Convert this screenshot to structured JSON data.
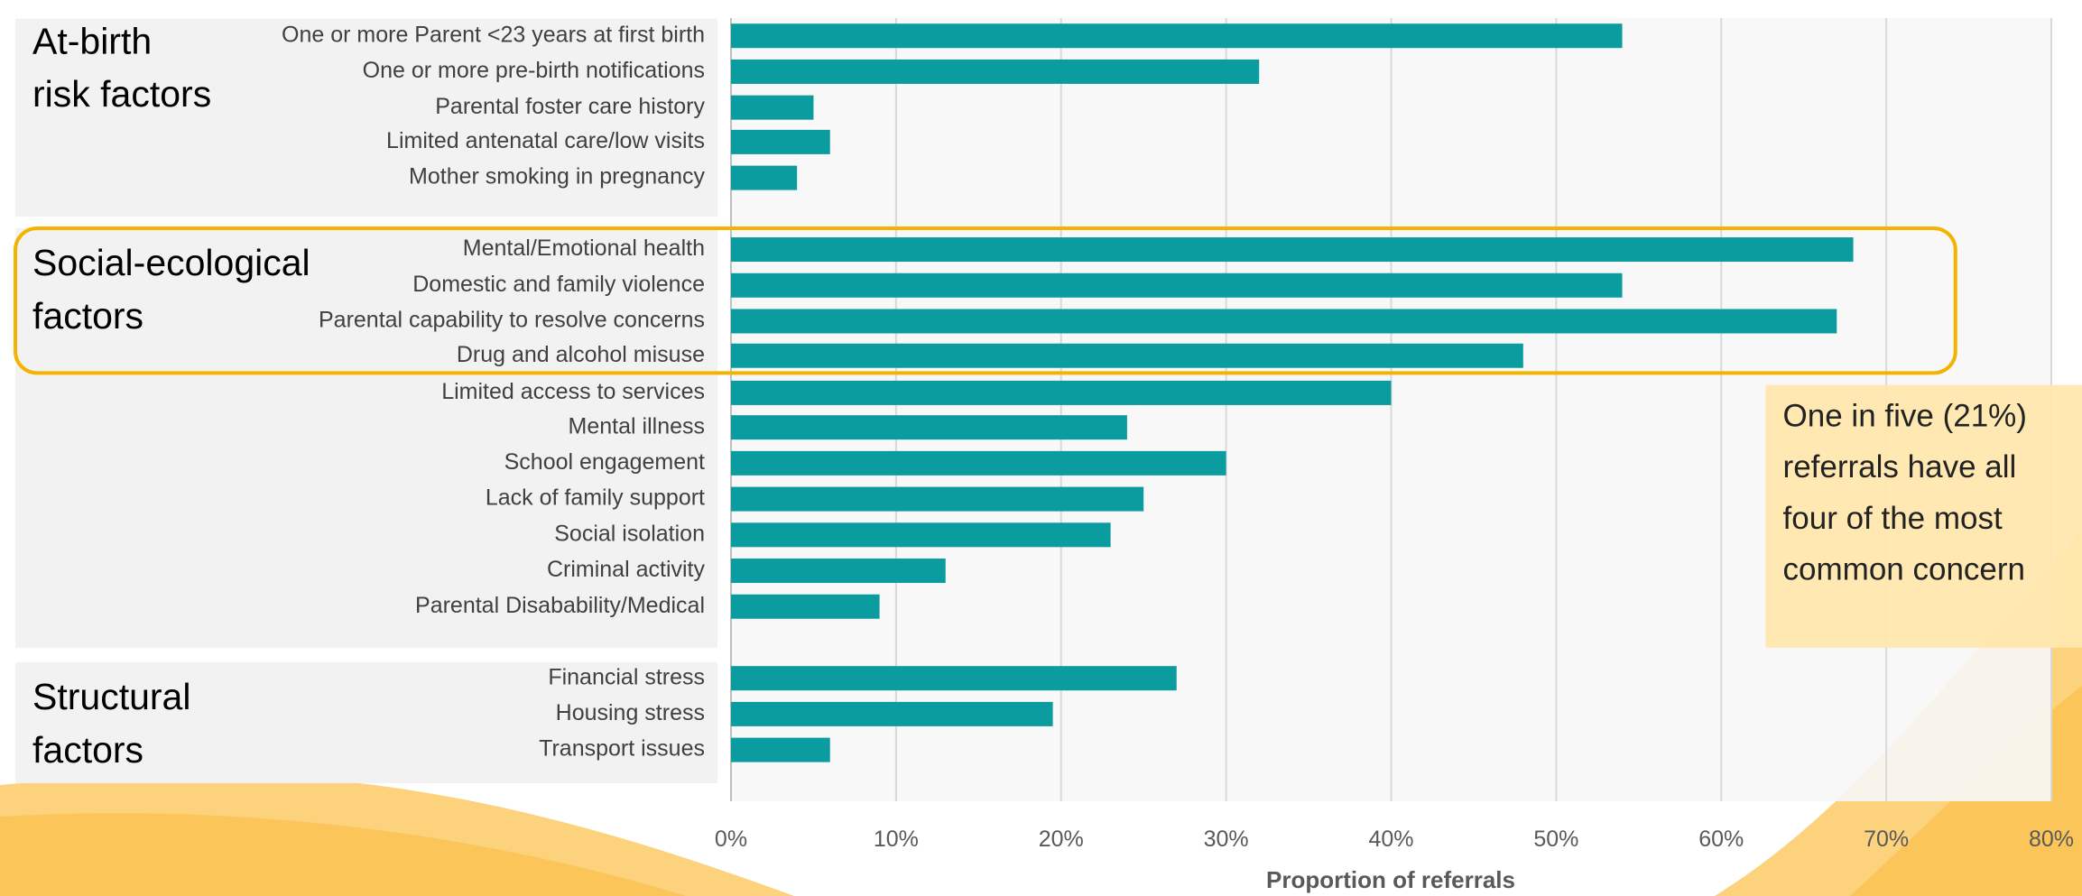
{
  "chart_data": {
    "type": "bar",
    "x_label": "Proportion of referrals",
    "color": "#0a9c9f",
    "xlim": [
      0,
      80
    ],
    "xticks": [
      {
        "value": 0,
        "label": "0%"
      },
      {
        "value": 10,
        "label": "10%"
      },
      {
        "value": 20,
        "label": "20%"
      },
      {
        "value": 30,
        "label": "30%"
      },
      {
        "value": 40,
        "label": "40%"
      },
      {
        "value": 50,
        "label": "50%"
      },
      {
        "value": 60,
        "label": "60%"
      },
      {
        "value": 70,
        "label": "70%"
      },
      {
        "value": 80,
        "label": "80%"
      }
    ],
    "grid": true,
    "groups": [
      {
        "label": [
          "At-birth",
          "risk factors"
        ],
        "categories": [
          "One or more Parent <23 years at first birth",
          "One or more pre-birth notifications",
          "Parental foster care history",
          "Limited antenatal care/low visits",
          "Mother smoking in pregnancy"
        ],
        "values": [
          54,
          32,
          5,
          6,
          4
        ]
      },
      {
        "label": [
          "Social-ecological",
          "factors"
        ],
        "categories": [
          "Mental/Emotional health",
          "Domestic and family violence",
          "Parental capability to resolve concerns",
          "Drug and alcohol misuse",
          "Limited access to services",
          "Mental illness",
          "School engagement",
          "Lack of family support",
          "Social isolation",
          "Criminal activity",
          "Parental Disabability/Medical"
        ],
        "values": [
          68,
          54,
          67,
          48,
          40,
          24,
          30,
          25,
          23,
          13,
          9
        ]
      },
      {
        "label": [
          "Structural",
          "factors"
        ],
        "categories": [
          "Financial stress",
          "Housing stress",
          "Transport issues"
        ],
        "values": [
          27,
          19.5,
          6
        ]
      }
    ],
    "annotation": [
      "One in five (21%)",
      "referrals have all",
      "four of the most",
      "common concern"
    ]
  }
}
